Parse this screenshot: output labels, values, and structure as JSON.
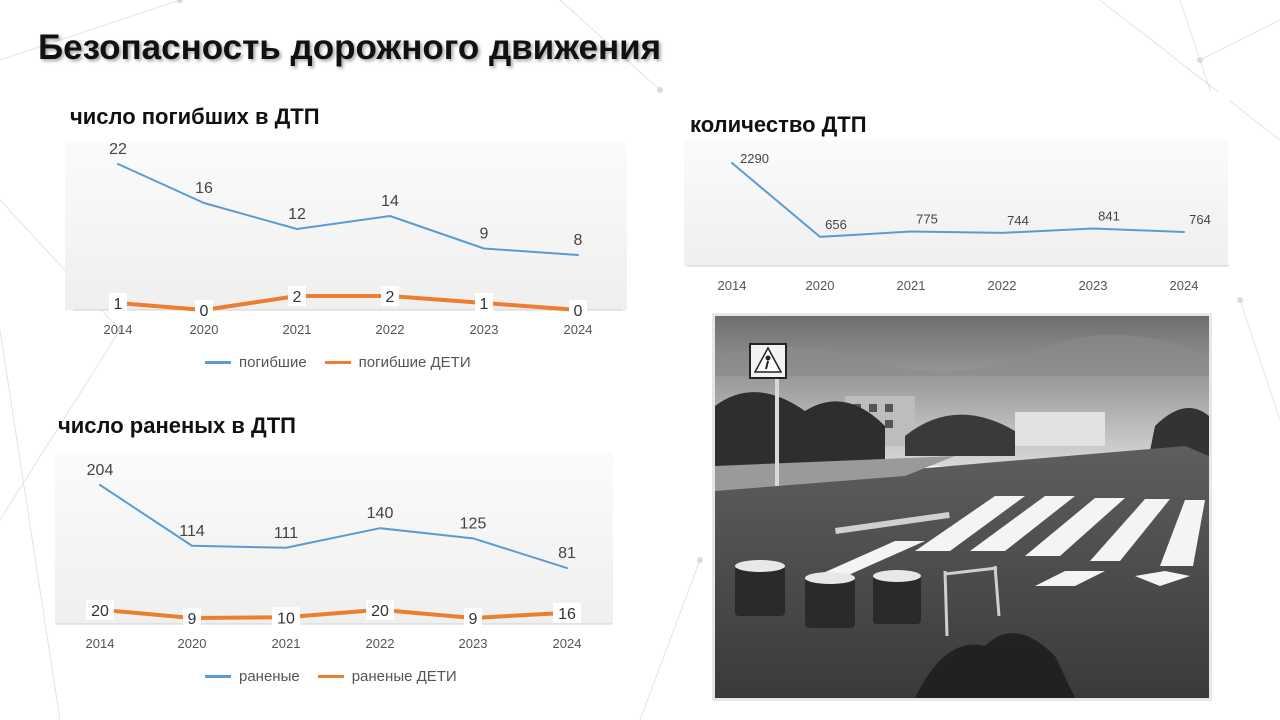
{
  "title": "Безопасность дорожного движения",
  "chart_data": [
    {
      "type": "line",
      "title": "число погибших  в ДТП",
      "categories": [
        "2014",
        "2020",
        "2021",
        "2022",
        "2023",
        "2024"
      ],
      "series": [
        {
          "name": "погибшие",
          "values": [
            22,
            16,
            12,
            14,
            9,
            8
          ],
          "color": "#5b9bd5"
        },
        {
          "name": "погибшие ДЕТИ",
          "values": [
            1,
            0,
            2,
            2,
            1,
            0
          ],
          "color": "#ed7d31"
        }
      ],
      "legend": "bottom"
    },
    {
      "type": "line",
      "title": "число раненых в ДТП",
      "categories": [
        "2014",
        "2020",
        "2021",
        "2022",
        "2023",
        "2024"
      ],
      "series": [
        {
          "name": "раненые",
          "values": [
            204,
            114,
            111,
            140,
            125,
            81
          ],
          "color": "#5b9bd5"
        },
        {
          "name": "раненые ДЕТИ",
          "values": [
            20,
            9,
            10,
            20,
            9,
            16
          ],
          "color": "#ed7d31"
        }
      ],
      "legend": "bottom"
    },
    {
      "type": "line",
      "title": "количество ДТП",
      "categories": [
        "2014",
        "2020",
        "2021",
        "2022",
        "2023",
        "2024"
      ],
      "series": [
        {
          "values": [
            2290,
            656,
            775,
            744,
            841,
            764
          ],
          "color": "#5b9bd5"
        }
      ],
      "legend": "none"
    }
  ],
  "photo": {
    "icon": "pedestrian-crossing-sign-icon"
  }
}
